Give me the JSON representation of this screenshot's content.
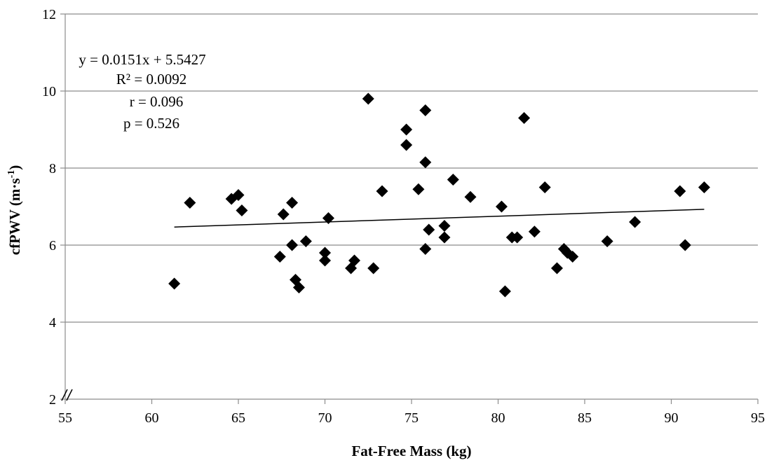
{
  "chart_data": {
    "type": "scatter",
    "title": "",
    "xlabel": "Fat-Free Mass (kg)",
    "ylabel_parts": [
      "cfPWV (m·s",
      "-1",
      ")"
    ],
    "xlim": [
      55,
      95
    ],
    "ylim": [
      2,
      12
    ],
    "xticks": [
      "55",
      "60",
      "65",
      "70",
      "75",
      "80",
      "85",
      "90",
      "95"
    ],
    "yticks": [
      "2",
      "4",
      "6",
      "8",
      "10",
      "12"
    ],
    "grid": "horizontal",
    "axis_break": "y-axis near origin",
    "marker": "diamond",
    "marker_color": "#000000",
    "trendline": {
      "slope": 0.0151,
      "intercept": 5.5427,
      "x_from": 61.3,
      "x_to": 91.9
    },
    "annotations": [
      "y = 0.0151x + 5.5427",
      "R² = 0.0092",
      "r = 0.096",
      "p = 0.526"
    ],
    "points": [
      [
        61.3,
        5.0
      ],
      [
        62.2,
        7.1
      ],
      [
        64.6,
        7.2
      ],
      [
        65.0,
        7.3
      ],
      [
        65.2,
        6.9
      ],
      [
        67.4,
        5.7
      ],
      [
        67.6,
        6.8
      ],
      [
        68.1,
        7.1
      ],
      [
        68.1,
        6.0
      ],
      [
        68.3,
        5.1
      ],
      [
        68.5,
        4.9
      ],
      [
        68.9,
        6.1
      ],
      [
        70.0,
        5.8
      ],
      [
        70.0,
        5.6
      ],
      [
        70.2,
        6.7
      ],
      [
        71.5,
        5.4
      ],
      [
        71.7,
        5.6
      ],
      [
        72.5,
        9.8
      ],
      [
        72.8,
        5.4
      ],
      [
        73.3,
        7.4
      ],
      [
        74.7,
        9.0
      ],
      [
        74.7,
        8.6
      ],
      [
        75.4,
        7.45
      ],
      [
        75.8,
        9.5
      ],
      [
        75.8,
        8.15
      ],
      [
        75.8,
        5.9
      ],
      [
        76.0,
        6.4
      ],
      [
        76.9,
        6.5
      ],
      [
        76.9,
        6.2
      ],
      [
        77.4,
        7.7
      ],
      [
        78.4,
        7.25
      ],
      [
        80.2,
        7.0
      ],
      [
        80.4,
        4.8
      ],
      [
        80.8,
        6.2
      ],
      [
        81.1,
        6.2
      ],
      [
        81.5,
        9.3
      ],
      [
        82.1,
        6.35
      ],
      [
        82.7,
        7.5
      ],
      [
        83.4,
        5.4
      ],
      [
        83.8,
        5.9
      ],
      [
        84.0,
        5.8
      ],
      [
        84.3,
        5.7
      ],
      [
        86.3,
        6.1
      ],
      [
        87.9,
        6.6
      ],
      [
        90.5,
        7.4
      ],
      [
        90.8,
        6.0
      ],
      [
        91.9,
        7.5
      ]
    ]
  }
}
